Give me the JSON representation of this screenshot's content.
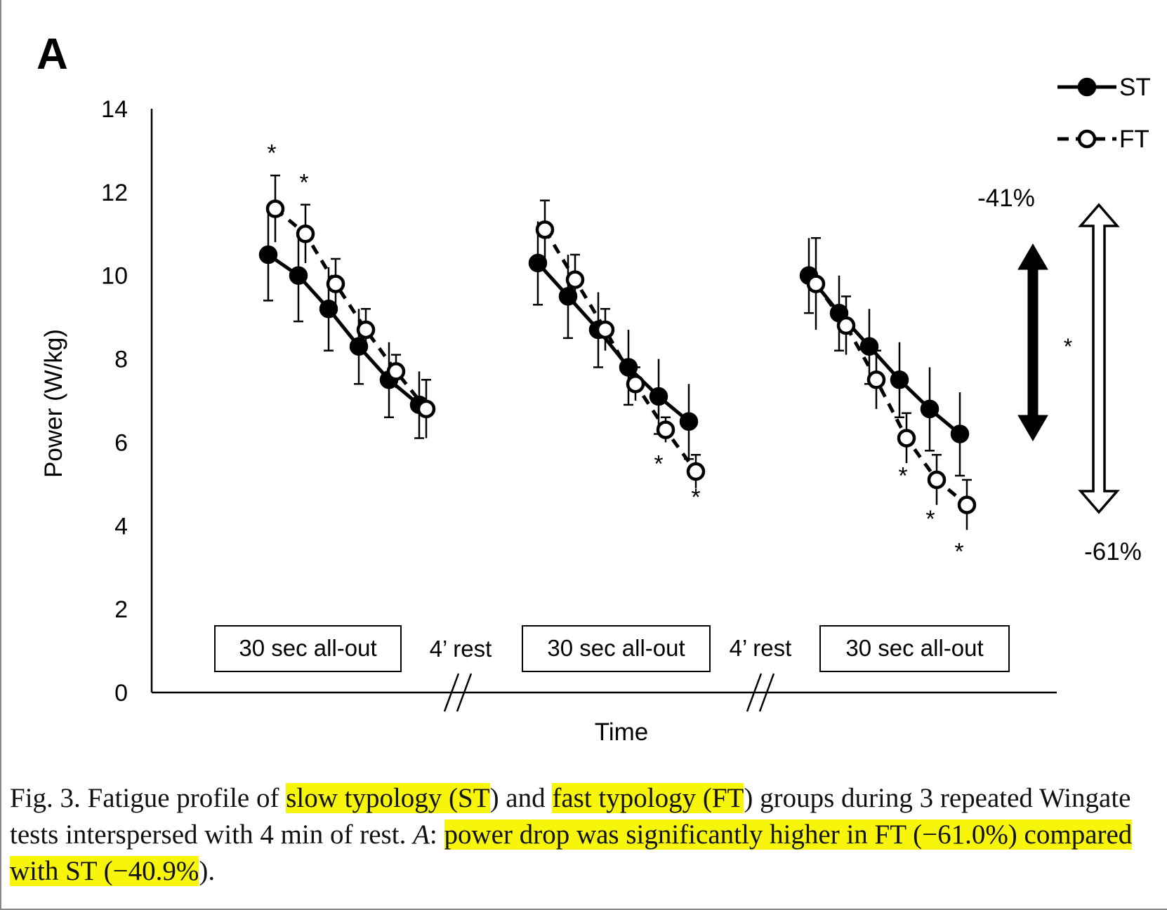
{
  "panel_label": "A",
  "chart_data": {
    "type": "line",
    "xlabel": "Time",
    "ylabel": "Power (W/kg)",
    "ylim": [
      0,
      14
    ],
    "yticks": [
      0,
      2,
      4,
      6,
      8,
      10,
      12,
      14
    ],
    "legend": {
      "placement": "top-right",
      "entries": [
        "ST",
        "FT"
      ]
    },
    "grid": false,
    "series": [
      {
        "name": "ST",
        "marker": "filled-circle",
        "line": "solid",
        "bouts": [
          {
            "values": [
              10.5,
              10.0,
              9.2,
              8.3,
              7.5,
              6.9
            ],
            "errors": [
              1.1,
              1.1,
              1.0,
              0.9,
              0.9,
              0.8
            ]
          },
          {
            "values": [
              10.3,
              9.5,
              8.7,
              7.8,
              7.1,
              6.5
            ],
            "errors": [
              1.0,
              1.0,
              0.9,
              0.9,
              0.9,
              0.9
            ]
          },
          {
            "values": [
              10.0,
              9.1,
              8.3,
              7.5,
              6.8,
              6.2
            ],
            "errors": [
              0.9,
              0.9,
              0.9,
              0.9,
              1.0,
              1.0
            ]
          }
        ]
      },
      {
        "name": "FT",
        "marker": "open-circle",
        "line": "dashed",
        "bouts": [
          {
            "values": [
              11.6,
              11.0,
              9.8,
              8.7,
              7.7,
              6.8
            ],
            "errors": [
              0.8,
              0.7,
              0.6,
              0.5,
              0.4,
              0.7
            ]
          },
          {
            "values": [
              11.1,
              9.9,
              8.7,
              7.4,
              6.3,
              5.3
            ],
            "errors": [
              0.7,
              0.6,
              0.5,
              0.4,
              0.3,
              0.4
            ]
          },
          {
            "values": [
              9.8,
              8.8,
              7.5,
              6.1,
              5.1,
              4.5
            ],
            "errors": [
              1.1,
              0.7,
              0.7,
              0.6,
              0.6,
              0.6
            ]
          }
        ]
      }
    ],
    "significance_markers": [
      {
        "series": "FT",
        "bout": 0,
        "point": 0,
        "label": "*"
      },
      {
        "series": "FT",
        "bout": 0,
        "point": 1,
        "label": "*"
      },
      {
        "series": "FT",
        "bout": 1,
        "point": 4,
        "label": "*"
      },
      {
        "series": "FT",
        "bout": 1,
        "point": 5,
        "label": "*"
      },
      {
        "series": "FT",
        "bout": 2,
        "point": 3,
        "label": "*"
      },
      {
        "series": "FT",
        "bout": 2,
        "point": 4,
        "label": "*"
      },
      {
        "series": "FT",
        "bout": 2,
        "point": 5,
        "label": "*"
      }
    ],
    "phase_labels": {
      "bouts": [
        "30 sec all-out",
        "30 sec all-out",
        "30 sec all-out"
      ],
      "rests": [
        "4’ rest",
        "4’ rest"
      ]
    },
    "drop_annotations": [
      {
        "series": "ST",
        "label": "-41%",
        "style": "filled-arrow",
        "from": 10.5,
        "to": 6.2
      },
      {
        "series": "FT",
        "label": "-61%",
        "style": "open-arrow",
        "from": 11.6,
        "to": 4.5
      }
    ],
    "drop_significance": "*"
  },
  "caption": {
    "parts": [
      {
        "text": "Fig. 3. Fatigue profile of ",
        "highlight": false
      },
      {
        "text": "slow typology (ST",
        "highlight": true
      },
      {
        "text": ") and ",
        "highlight": false
      },
      {
        "text": "fast typology (FT",
        "highlight": true
      },
      {
        "text": ") groups during 3 repeated Wingate tests interspersed with 4 min of rest. ",
        "highlight": false
      },
      {
        "text": "A",
        "highlight": false,
        "italic": true
      },
      {
        "text": ": ",
        "highlight": false
      },
      {
        "text": "power drop was significantly higher in FT (−61.0%) compared with ST (−40.9%",
        "highlight": true
      },
      {
        "text": ").",
        "highlight": false
      }
    ]
  },
  "colors": {
    "ink": "#000000",
    "highlight": "#f7f50a",
    "background": "#ffffff"
  }
}
